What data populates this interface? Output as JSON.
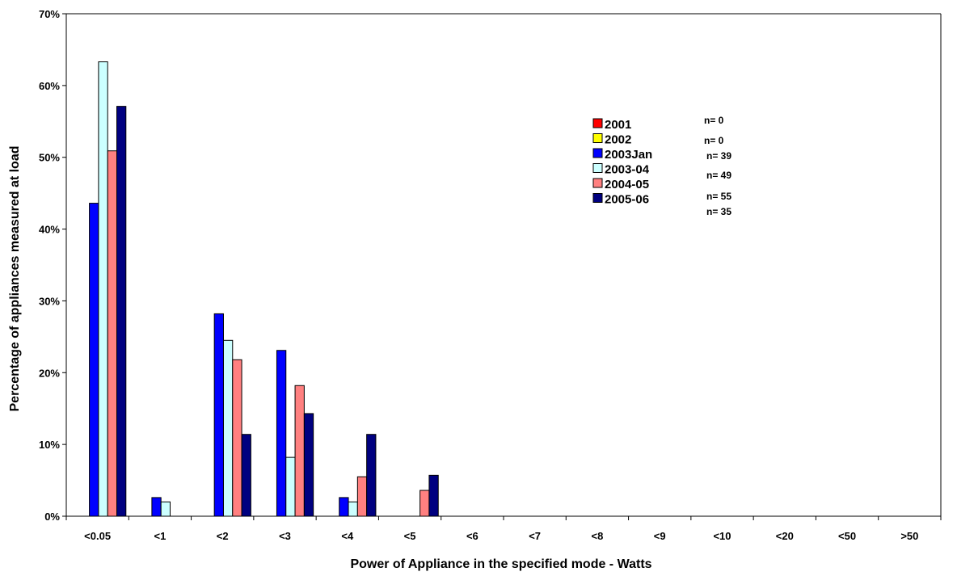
{
  "chart_data": {
    "type": "bar",
    "title": "",
    "xlabel": "Power of Appliance in the specified mode - Watts",
    "ylabel": "Percentage of appliances measured at load",
    "ylim": [
      0,
      70
    ],
    "ytick_values": [
      0,
      10,
      20,
      30,
      40,
      50,
      60,
      70
    ],
    "ytick_labels": [
      "0%",
      "10%",
      "20%",
      "30%",
      "40%",
      "50%",
      "60%",
      "70%"
    ],
    "grid": false,
    "legend_position": "top-right",
    "categories": [
      "<0.05",
      "<1",
      "<2",
      "<3",
      "<4",
      "<5",
      "<6",
      "<7",
      "<8",
      "<9",
      "<10",
      "<20",
      "<50",
      ">50"
    ],
    "series": [
      {
        "name": "2001",
        "n_label": "n= 0",
        "color": "#ff0000",
        "values": [
          0,
          0,
          0,
          0,
          0,
          0,
          0,
          0,
          0,
          0,
          0,
          0,
          0,
          0
        ]
      },
      {
        "name": "2002",
        "n_label": "n= 0",
        "color": "#ffff00",
        "values": [
          0,
          0,
          0,
          0,
          0,
          0,
          0,
          0,
          0,
          0,
          0,
          0,
          0,
          0
        ]
      },
      {
        "name": "2003Jan",
        "n_label": "n= 39",
        "color": "#0000ff",
        "values": [
          43.6,
          2.6,
          28.2,
          23.1,
          2.6,
          0,
          0,
          0,
          0,
          0,
          0,
          0,
          0,
          0
        ]
      },
      {
        "name": "2003-04",
        "n_label": "n= 49",
        "color": "#ccffff",
        "values": [
          63.3,
          2.0,
          24.5,
          8.2,
          2.0,
          0,
          0,
          0,
          0,
          0,
          0,
          0,
          0,
          0
        ]
      },
      {
        "name": "2004-05",
        "n_label": "n= 55",
        "color": "#ff8080",
        "values": [
          50.9,
          0,
          21.8,
          18.2,
          5.5,
          3.6,
          0,
          0,
          0,
          0,
          0,
          0,
          0,
          0
        ]
      },
      {
        "name": "2005-06",
        "n_label": "n= 35",
        "color": "#000080",
        "values": [
          57.1,
          0,
          11.4,
          14.3,
          11.4,
          5.7,
          0,
          0,
          0,
          0,
          0,
          0,
          0,
          0
        ]
      }
    ]
  }
}
